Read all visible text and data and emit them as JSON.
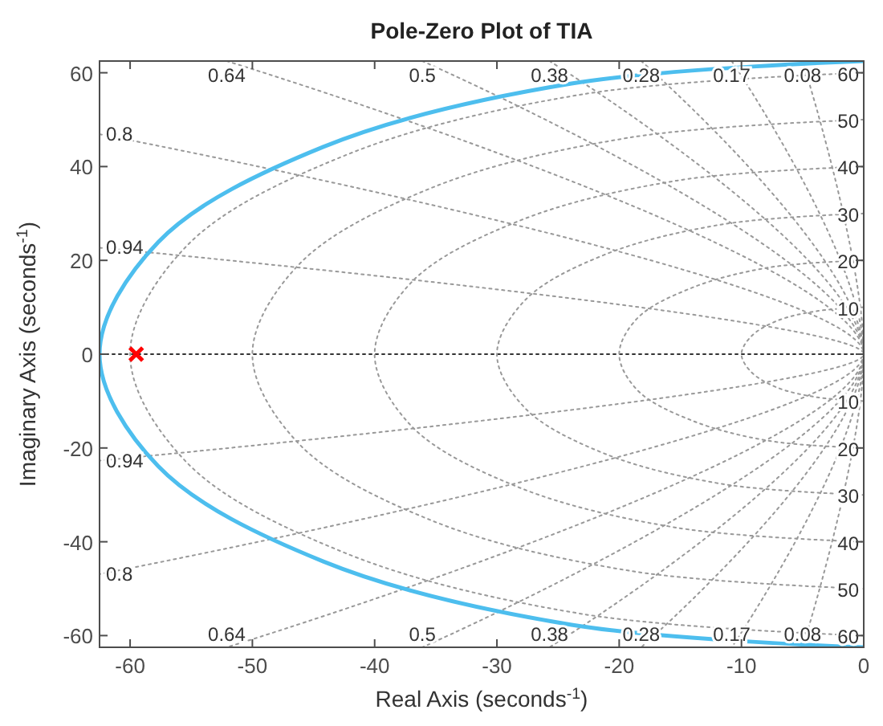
{
  "chart_data": {
    "type": "line",
    "title": "Pole-Zero Plot of TIA",
    "xlabel": "Real Axis (seconds$^{-1}$)",
    "ylabel": "Imaginary Axis (seconds$^{-1}$)",
    "xlim": [
      -62.5,
      0
    ],
    "ylim": [
      -62.5,
      62.5
    ],
    "xticks": [
      -60,
      -50,
      -40,
      -30,
      -20,
      -10,
      0
    ],
    "yticks": [
      -60,
      -40,
      -20,
      0,
      20,
      40,
      60
    ],
    "series": [
      {
        "color": "#333333",
        "line_style": "dotted",
        "x": [
          -62.5,
          0
        ],
        "values": [
          0,
          0
        ]
      },
      {
        "name": "0.08",
        "color": "#999999",
        "line_style": "dotted",
        "x": [
          -5.0,
          0,
          -5.0
        ],
        "values": [
          62.5,
          0,
          -62.5
        ]
      },
      {
        "name": "0.17",
        "color": "#999999",
        "line_style": "dotted",
        "x": [
          -10.8,
          0,
          -10.8
        ],
        "values": [
          62.5,
          0,
          -62.5
        ]
      },
      {
        "name": "0.28",
        "color": "#999999",
        "line_style": "dotted",
        "x": [
          -18.2,
          0,
          -18.2
        ],
        "values": [
          62.5,
          0,
          -62.5
        ]
      },
      {
        "name": "0.38",
        "color": "#999999",
        "line_style": "dotted",
        "x": [
          -25.7,
          0,
          -25.7
        ],
        "values": [
          62.5,
          0,
          -62.5
        ]
      },
      {
        "name": "0.5",
        "color": "#999999",
        "line_style": "dotted",
        "x": [
          -36.1,
          0,
          -36.1
        ],
        "values": [
          62.5,
          0,
          -62.5
        ]
      },
      {
        "name": "0.64",
        "color": "#999999",
        "line_style": "dotted",
        "x": [
          -52.1,
          0,
          -52.1
        ],
        "values": [
          62.5,
          0,
          -62.5
        ]
      },
      {
        "name": "0.8",
        "color": "#999999",
        "line_style": "dotted",
        "x": [
          -62.5,
          0,
          -62.5
        ],
        "values": [
          46.9,
          0,
          -46.9
        ]
      },
      {
        "name": "0.94",
        "color": "#999999",
        "line_style": "dotted",
        "x": [
          -62.5,
          0,
          -62.5
        ],
        "values": [
          22.7,
          0,
          -22.7
        ]
      },
      {
        "name": "10",
        "color": "#999999",
        "line_style": "dotted",
        "x": [
          0,
          -3.8,
          -7.1,
          -9.2,
          -10,
          -9.2,
          -7.1,
          -3.8,
          0
        ],
        "values": [
          10,
          9.2,
          7.1,
          3.8,
          0,
          -3.8,
          -7.1,
          -9.2,
          -10
        ]
      },
      {
        "name": "20",
        "color": "#999999",
        "line_style": "dotted",
        "x": [
          0,
          -7.7,
          -14.1,
          -18.5,
          -20,
          -18.5,
          -14.1,
          -7.7,
          0
        ],
        "values": [
          20,
          18.5,
          14.1,
          7.7,
          0,
          -7.7,
          -14.1,
          -18.5,
          -20
        ]
      },
      {
        "name": "30",
        "color": "#999999",
        "line_style": "dotted",
        "x": [
          0,
          -11.5,
          -21.2,
          -27.7,
          -30,
          -27.7,
          -21.2,
          -11.5,
          0
        ],
        "values": [
          30,
          27.7,
          21.2,
          11.5,
          0,
          -11.5,
          -21.2,
          -27.7,
          -30
        ]
      },
      {
        "name": "40",
        "color": "#999999",
        "line_style": "dotted",
        "x": [
          0,
          -15.3,
          -28.3,
          -37,
          -40,
          -37,
          -28.3,
          -15.3,
          0
        ],
        "values": [
          40,
          37,
          28.3,
          15.3,
          0,
          -15.3,
          -28.3,
          -37,
          -40
        ]
      },
      {
        "name": "50",
        "color": "#999999",
        "line_style": "dotted",
        "x": [
          0,
          -19.1,
          -35.4,
          -46.2,
          -50,
          -46.2,
          -35.4,
          -19.1,
          0
        ],
        "values": [
          50,
          46.2,
          35.4,
          19.1,
          0,
          -19.1,
          -35.4,
          -46.2,
          -50
        ]
      },
      {
        "name": "60",
        "color": "#999999",
        "line_style": "dotted",
        "x": [
          0,
          -23,
          -42.4,
          -55.4,
          -60,
          -55.4,
          -42.4,
          -23,
          0
        ],
        "values": [
          60,
          55.4,
          42.4,
          23,
          0,
          -23,
          -42.4,
          -55.4,
          -60
        ]
      },
      {
        "color": "#4dbeee",
        "line_style": "solid",
        "x": [
          0,
          -23.9,
          -44.2,
          -57.7,
          -62.5,
          -57.7,
          -44.2,
          -23.9,
          0
        ],
        "values": [
          62.5,
          57.7,
          44.2,
          23.9,
          0,
          -23.9,
          -44.2,
          -57.7,
          -62.5
        ]
      },
      {
        "type": "scatter",
        "marker": "cross",
        "color": "#ff0000",
        "x": [
          -59.5
        ],
        "values": [
          0
        ]
      }
    ]
  }
}
